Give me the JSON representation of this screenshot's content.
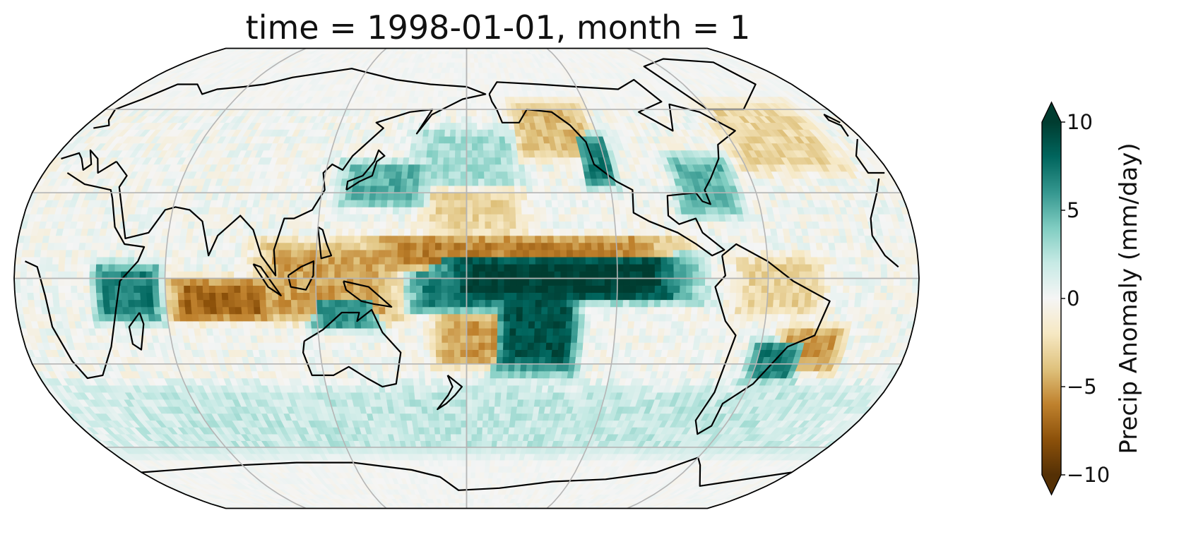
{
  "title": "time = 1998-01-01, month = 1",
  "colorbar": {
    "label": "Precip Anomaly (mm/day)",
    "ticks": [
      "10",
      "5",
      "0",
      "−5",
      "−10"
    ],
    "tick_values": [
      10,
      5,
      0,
      -5,
      -10
    ],
    "vmin": -10,
    "vmax": 10,
    "extend": "both",
    "colormap": "BrBG",
    "stops": [
      "#543005",
      "#8c510a",
      "#bf812d",
      "#dfc27d",
      "#f6e8c3",
      "#f5f5f5",
      "#c7eae5",
      "#80cdc1",
      "#35978f",
      "#01665e",
      "#003c30"
    ]
  },
  "chart_data": {
    "type": "heatmap",
    "title": "time = 1998-01-01, month = 1",
    "variable": "Precip Anomaly (mm/day)",
    "projection": "robinson",
    "central_longitude": 180,
    "value_range": [
      -10,
      10
    ],
    "gridlines": {
      "longitudes": [
        -120,
        -60,
        0,
        60,
        120
      ],
      "latitudes": [
        -60,
        -30,
        0,
        30,
        60
      ]
    },
    "anomaly_regions": [
      {
        "name": "central-east-pacific-wet",
        "lon": [
          170,
          265
        ],
        "lat": [
          -5,
          5
        ],
        "value": 10
      },
      {
        "name": "pacific-south-tongue-wet",
        "lon": [
          195,
          222
        ],
        "lat": [
          -30,
          0
        ],
        "value": 9
      },
      {
        "name": "western-pacific-near-equator-wet",
        "lon": [
          160,
          195
        ],
        "lat": [
          -9,
          0
        ],
        "value": 7
      },
      {
        "name": "north-pacific-dry-band",
        "lon": [
          140,
          260
        ],
        "lat": [
          6,
          12
        ],
        "value": -6
      },
      {
        "name": "maritime-continent-dry",
        "lon": [
          100,
          150
        ],
        "lat": [
          -12,
          10
        ],
        "value": -5
      },
      {
        "name": "indian-ocean-dry",
        "lon": [
          65,
          100
        ],
        "lat": [
          -12,
          -3
        ],
        "value": -7
      },
      {
        "name": "east-africa-wet",
        "lon": [
          35,
          55
        ],
        "lat": [
          -12,
          2
        ],
        "value": 7
      },
      {
        "name": "southwest-pacific-dry",
        "lon": [
          170,
          195
        ],
        "lat": [
          -28,
          -15
        ],
        "value": -5
      },
      {
        "name": "gulf-of-alaska-dry",
        "lon": [
          205,
          235
        ],
        "lat": [
          45,
          60
        ],
        "value": -4
      },
      {
        "name": "california-coast-wet",
        "lon": [
          233,
          240
        ],
        "lat": [
          35,
          48
        ],
        "value": 7
      },
      {
        "name": "southeast-us-wet",
        "lon": [
          270,
          290
        ],
        "lat": [
          25,
          40
        ],
        "value": 5
      },
      {
        "name": "northern-australia-wet",
        "lon": [
          120,
          142
        ],
        "lat": [
          -15,
          -8
        ],
        "value": 6
      },
      {
        "name": "north-atlantic-dry",
        "lon": [
          300,
          340
        ],
        "lat": [
          40,
          60
        ],
        "value": -3
      },
      {
        "name": "northern-south-america-dry",
        "lon": [
          290,
          320
        ],
        "lat": [
          -10,
          5
        ],
        "value": -3
      },
      {
        "name": "south-brazil-wet",
        "lon": [
          300,
          315
        ],
        "lat": [
          -33,
          -25
        ],
        "value": 7
      },
      {
        "name": "south-atlantic-dry",
        "lon": [
          310,
          330
        ],
        "lat": [
          -30,
          -20
        ],
        "value": -5
      },
      {
        "name": "japan-east-wet",
        "lon": [
          130,
          160
        ],
        "lat": [
          28,
          38
        ],
        "value": 5
      },
      {
        "name": "north-central-pacific-wet",
        "lon": [
          160,
          200
        ],
        "lat": [
          35,
          50
        ],
        "value": 3
      },
      {
        "name": "north-pacific-dry-patch",
        "lon": [
          165,
          200
        ],
        "lat": [
          18,
          28
        ],
        "value": -3
      },
      {
        "name": "southern-ocean-mixed",
        "lon": [
          0,
          360
        ],
        "lat": [
          -60,
          -40
        ],
        "value": 2
      }
    ]
  }
}
